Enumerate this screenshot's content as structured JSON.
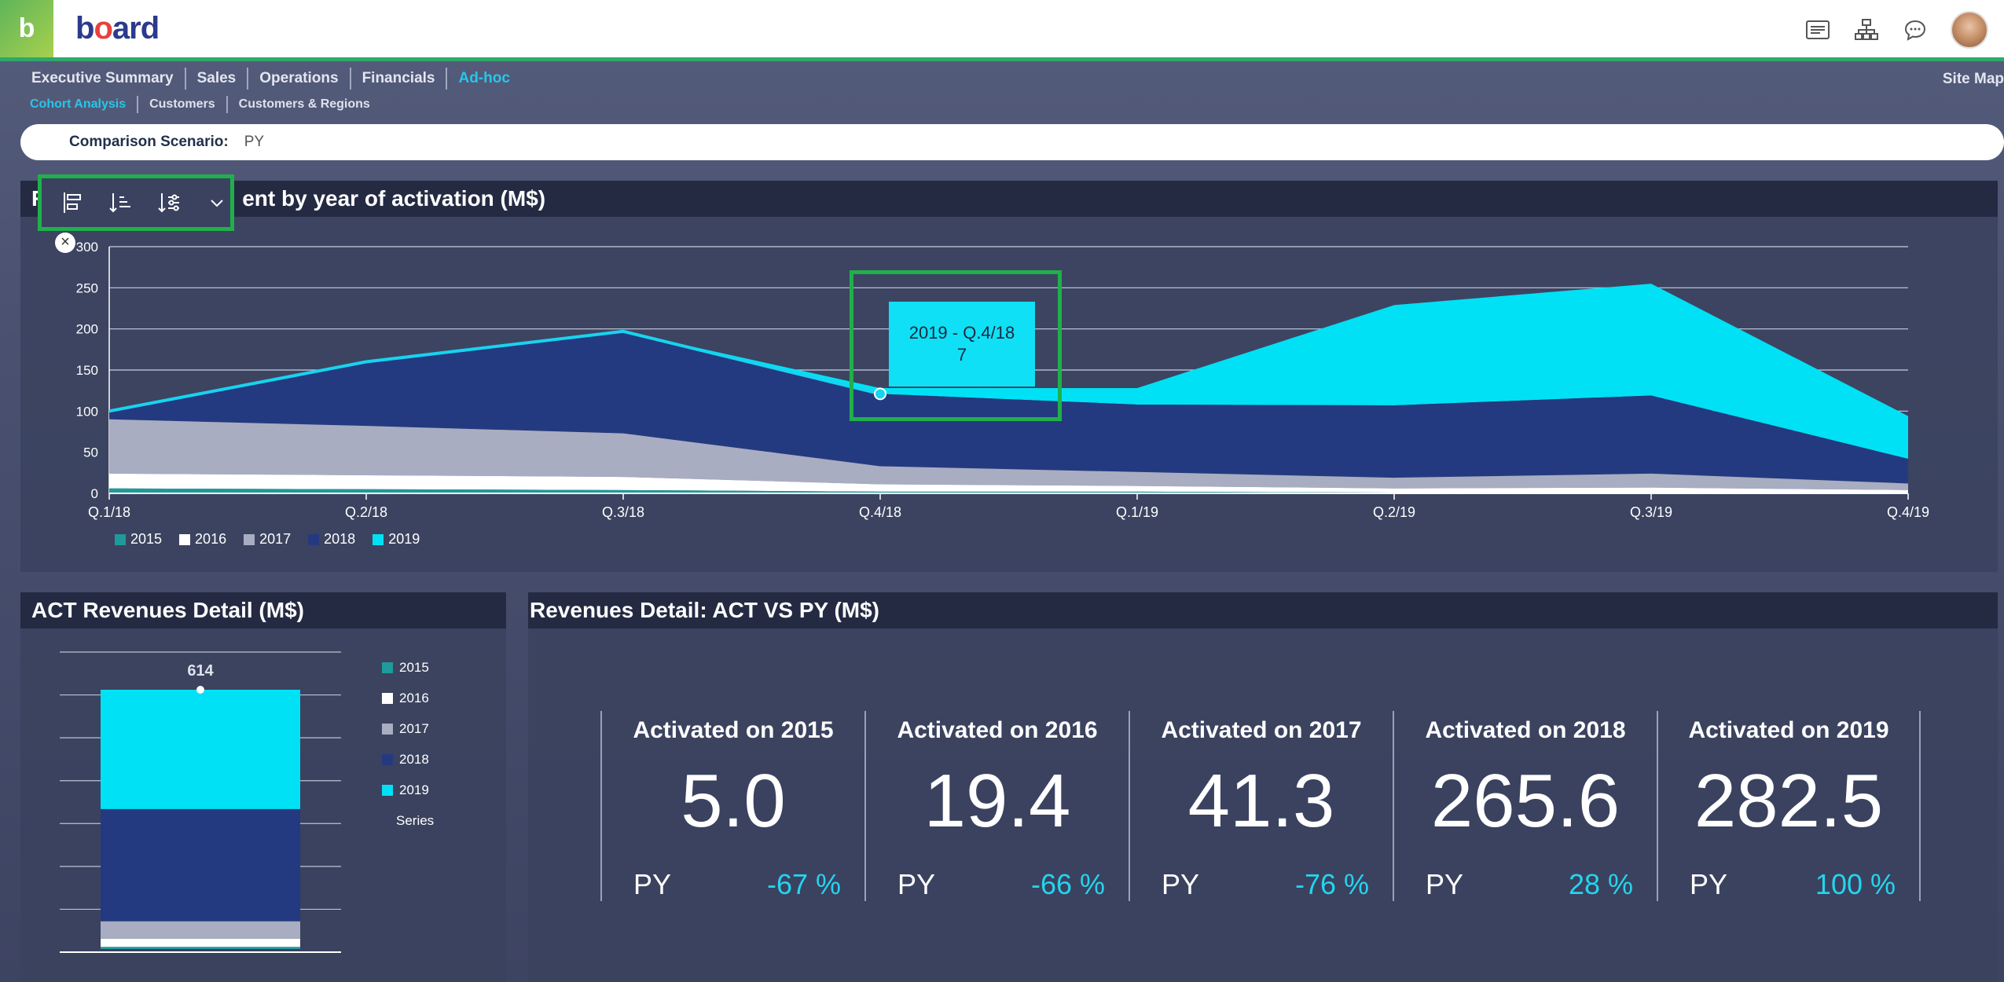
{
  "app": {
    "logo_letter": "b",
    "logo_word_a": "b",
    "logo_word_o": "o",
    "logo_word_rest": "ard"
  },
  "header": {
    "icons": [
      "list-icon",
      "hierarchy-icon",
      "chat-icon"
    ]
  },
  "nav": {
    "items": [
      "Executive Summary",
      "Sales",
      "Operations",
      "Financials",
      "Ad-hoc"
    ],
    "active": "Ad-hoc",
    "site_map": "Site Map"
  },
  "subnav": {
    "items": [
      "Cohort Analysis",
      "Customers",
      "Customers & Regions"
    ],
    "active": "Cohort Analysis"
  },
  "scenario": {
    "label": "Comparison Scenario:",
    "value": "PY"
  },
  "top_panel": {
    "title_visible_left": "R",
    "title_visible_right": "ent by year of activation (M$)",
    "tooltip_line1": "2019 - Q.4/18",
    "tooltip_line2": "7",
    "close_glyph": "×"
  },
  "colors": {
    "s2015": "#1f9a9a",
    "s2016": "#ffffff",
    "s2017": "#a9adc2",
    "s2018": "#243a80",
    "s2019": "#00e1f5",
    "accent": "#28c6e8",
    "frame": "#20b04a"
  },
  "chart_data": [
    {
      "type": "area",
      "title": "",
      "x": [
        "Q.1/18",
        "Q.2/18",
        "Q.3/18",
        "Q.4/18",
        "Q.1/19",
        "Q.2/19",
        "Q.3/19",
        "Q.4/19"
      ],
      "ylim": [
        0,
        300
      ],
      "yticks": [
        0,
        50,
        100,
        150,
        200,
        250,
        300
      ],
      "grid": true,
      "stacked": true,
      "legend_position": "bottom-left",
      "series": [
        {
          "name": "2015",
          "values": [
            6,
            5,
            4,
            2,
            2,
            1,
            1,
            1
          ]
        },
        {
          "name": "2016",
          "values": [
            18,
            17,
            16,
            9,
            7,
            5,
            6,
            3
          ]
        },
        {
          "name": "2017",
          "values": [
            66,
            60,
            53,
            22,
            17,
            13,
            17,
            8
          ]
        },
        {
          "name": "2018",
          "values": [
            10,
            78,
            124,
            88,
            82,
            88,
            95,
            30
          ]
        },
        {
          "name": "2019",
          "values": [
            0,
            0,
            0,
            7,
            20,
            122,
            136,
            52
          ]
        }
      ]
    },
    {
      "type": "bar",
      "title": "ACT Revenues Detail (M$)",
      "categories": [
        ""
      ],
      "stacked": true,
      "total_label": "614",
      "legend_position": "right",
      "legend_extra": "Series",
      "series": [
        {
          "name": "2015",
          "values": [
            5.0
          ]
        },
        {
          "name": "2016",
          "values": [
            19.4
          ]
        },
        {
          "name": "2017",
          "values": [
            41.3
          ]
        },
        {
          "name": "2018",
          "values": [
            265.6
          ]
        },
        {
          "name": "2019",
          "values": [
            282.5
          ]
        }
      ]
    }
  ],
  "kpi_panel": {
    "title": "Revenues Detail: ACT VS PY (M$)",
    "cards": [
      {
        "title": "Activated on 2015",
        "value": "5.0",
        "py_label": "PY",
        "pct": "-67 %"
      },
      {
        "title": "Activated on 2016",
        "value": "19.4",
        "py_label": "PY",
        "pct": "-66 %"
      },
      {
        "title": "Activated on 2017",
        "value": "41.3",
        "py_label": "PY",
        "pct": "-76 %"
      },
      {
        "title": "Activated on 2018",
        "value": "265.6",
        "py_label": "PY",
        "pct": "28 %"
      },
      {
        "title": "Activated on 2019",
        "value": "282.5",
        "py_label": "PY",
        "pct": "100 %"
      }
    ]
  }
}
